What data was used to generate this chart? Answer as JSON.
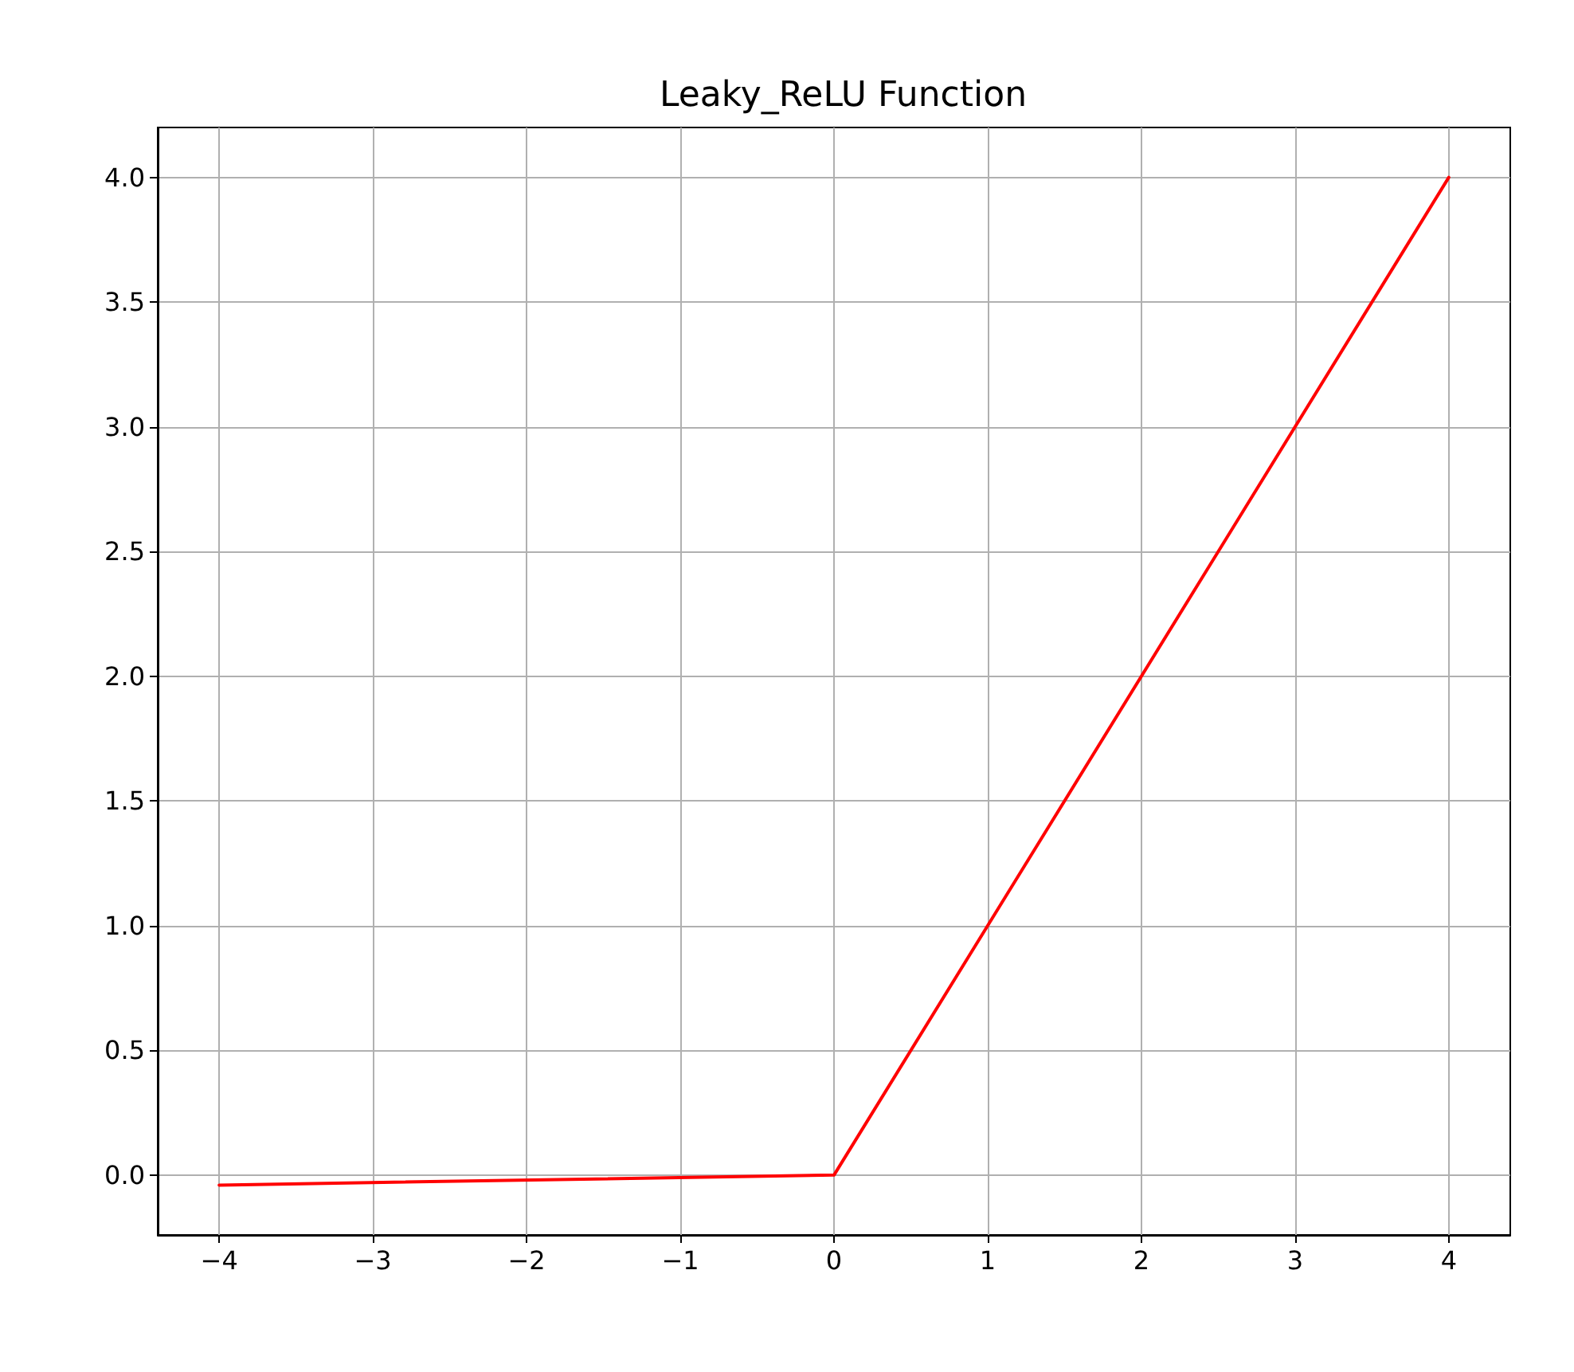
{
  "chart_data": {
    "type": "line",
    "title": "Leaky_ReLU Function",
    "x": [
      -4,
      0,
      4
    ],
    "series": [
      {
        "color": "#ff0000",
        "values": [
          -0.04,
          0,
          4
        ]
      }
    ],
    "xlim": [
      -4.4,
      4.4
    ],
    "xticks": [
      {
        "value": -4,
        "label": "−4"
      },
      {
        "value": -3,
        "label": "−3"
      },
      {
        "value": -2,
        "label": "−2"
      },
      {
        "value": -1,
        "label": "−1"
      },
      0,
      1,
      2,
      3,
      4
    ],
    "ylim": [
      -0.24,
      4.2
    ],
    "yticks": [
      {
        "value": 0,
        "label": "0.0"
      },
      {
        "value": 0.5,
        "label": "0.5"
      },
      {
        "value": 1,
        "label": "1.0"
      },
      {
        "value": 1.5,
        "label": "1.5"
      },
      {
        "value": 2,
        "label": "2.0"
      },
      {
        "value": 2.5,
        "label": "2.5"
      },
      {
        "value": 3,
        "label": "3.0"
      },
      {
        "value": 3.5,
        "label": "3.5"
      },
      {
        "value": 4,
        "label": "4.0"
      }
    ],
    "grid": true,
    "marker": "none",
    "line_style": "solid"
  }
}
